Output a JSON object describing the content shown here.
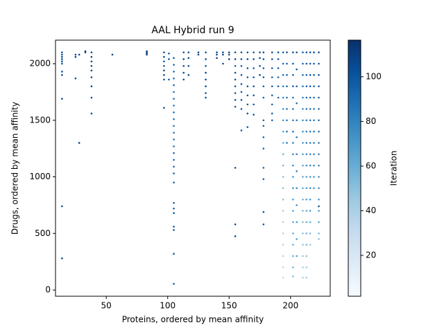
{
  "chart_data": {
    "type": "scatter",
    "title": "AAL Hybrid run 9",
    "x_label": "Proteins, ordered by mean affinity",
    "y_label": "Drugs, ordered by mean affinity",
    "colorbar_label": "Iteration",
    "colormap": "Blues",
    "xlim": [
      8.7,
      232.3
    ],
    "ylim": [
      -55,
      2208
    ],
    "clim": [
      1.7,
      116.4
    ],
    "xticks": [
      50,
      100,
      150,
      200
    ],
    "yticks": [
      0,
      500,
      1000,
      1500,
      2000
    ],
    "cticks": [
      20,
      40,
      60,
      80,
      100
    ],
    "points": [
      [
        14,
        2100,
        105
      ],
      [
        14,
        2080,
        105
      ],
      [
        14,
        2060,
        105
      ],
      [
        14,
        2040,
        105
      ],
      [
        14,
        2020,
        105
      ],
      [
        14,
        2000,
        105
      ],
      [
        14,
        1930,
        105
      ],
      [
        14,
        1900,
        105
      ],
      [
        14,
        1690,
        105
      ],
      [
        14,
        740,
        105
      ],
      [
        14,
        280,
        105
      ],
      [
        25,
        2080,
        108
      ],
      [
        25,
        2060,
        108
      ],
      [
        25,
        1870,
        108
      ],
      [
        28,
        2080,
        108
      ],
      [
        28,
        1300,
        108
      ],
      [
        33,
        2110,
        110
      ],
      [
        33,
        2100,
        110
      ],
      [
        38,
        2100,
        108
      ],
      [
        38,
        2060,
        108
      ],
      [
        38,
        2020,
        108
      ],
      [
        38,
        1980,
        108
      ],
      [
        38,
        1940,
        108
      ],
      [
        38,
        1880,
        108
      ],
      [
        38,
        1800,
        108
      ],
      [
        38,
        1700,
        108
      ],
      [
        38,
        1560,
        108
      ],
      [
        55,
        2080,
        110
      ],
      [
        83,
        2110,
        110
      ],
      [
        83,
        2100,
        110
      ],
      [
        83,
        2090,
        110
      ],
      [
        83,
        2080,
        110
      ],
      [
        97,
        2100,
        105
      ],
      [
        97,
        2060,
        105
      ],
      [
        97,
        2020,
        105
      ],
      [
        97,
        1980,
        105
      ],
      [
        97,
        1940,
        105
      ],
      [
        97,
        1900,
        105
      ],
      [
        97,
        1860,
        105
      ],
      [
        97,
        1610,
        105
      ],
      [
        101,
        2090,
        100
      ],
      [
        101,
        2040,
        100
      ],
      [
        101,
        1860,
        100
      ],
      [
        105,
        2050,
        95
      ],
      [
        105,
        1990,
        95
      ],
      [
        105,
        1930,
        92
      ],
      [
        105,
        1870,
        92
      ],
      [
        105,
        1810,
        90
      ],
      [
        105,
        1750,
        90
      ],
      [
        105,
        1690,
        88
      ],
      [
        105,
        1630,
        88
      ],
      [
        105,
        1570,
        90
      ],
      [
        105,
        1510,
        90
      ],
      [
        105,
        1450,
        88
      ],
      [
        105,
        1390,
        88
      ],
      [
        105,
        1330,
        90
      ],
      [
        105,
        1270,
        90
      ],
      [
        105,
        1210,
        92
      ],
      [
        105,
        1150,
        92
      ],
      [
        105,
        1090,
        95
      ],
      [
        105,
        1030,
        95
      ],
      [
        105,
        950,
        100
      ],
      [
        105,
        770,
        100
      ],
      [
        105,
        720,
        100
      ],
      [
        105,
        680,
        100
      ],
      [
        105,
        560,
        100
      ],
      [
        105,
        530,
        100
      ],
      [
        105,
        320,
        100
      ],
      [
        105,
        55,
        100
      ],
      [
        113,
        2100,
        105
      ],
      [
        113,
        2040,
        105
      ],
      [
        113,
        1980,
        105
      ],
      [
        113,
        1920,
        105
      ],
      [
        113,
        1860,
        105
      ],
      [
        117,
        2100,
        105
      ],
      [
        117,
        2050,
        105
      ],
      [
        117,
        1980,
        105
      ],
      [
        117,
        1900,
        105
      ],
      [
        125,
        2100,
        108
      ],
      [
        125,
        2080,
        108
      ],
      [
        131,
        2100,
        105
      ],
      [
        131,
        2040,
        105
      ],
      [
        131,
        1980,
        105
      ],
      [
        131,
        1920,
        105
      ],
      [
        131,
        1860,
        105
      ],
      [
        131,
        1800,
        105
      ],
      [
        131,
        1740,
        105
      ],
      [
        131,
        1700,
        105
      ],
      [
        140,
        2100,
        108
      ],
      [
        140,
        2080,
        108
      ],
      [
        140,
        2050,
        108
      ],
      [
        145,
        2100,
        108
      ],
      [
        145,
        2080,
        108
      ],
      [
        145,
        2000,
        108
      ],
      [
        150,
        2100,
        108
      ],
      [
        150,
        2080,
        108
      ],
      [
        150,
        2040,
        108
      ],
      [
        155,
        2100,
        105
      ],
      [
        155,
        2040,
        105
      ],
      [
        155,
        1980,
        100
      ],
      [
        155,
        1920,
        100
      ],
      [
        155,
        1860,
        100
      ],
      [
        155,
        1800,
        100
      ],
      [
        155,
        1740,
        100
      ],
      [
        155,
        1680,
        100
      ],
      [
        155,
        1620,
        100
      ],
      [
        155,
        1080,
        105
      ],
      [
        155,
        580,
        105
      ],
      [
        155,
        475,
        105
      ],
      [
        160,
        2100,
        105
      ],
      [
        160,
        2040,
        105
      ],
      [
        160,
        1980,
        100
      ],
      [
        160,
        1900,
        100
      ],
      [
        160,
        1820,
        100
      ],
      [
        160,
        1750,
        100
      ],
      [
        160,
        1680,
        100
      ],
      [
        160,
        1600,
        100
      ],
      [
        160,
        1410,
        100
      ],
      [
        165,
        2100,
        105
      ],
      [
        165,
        2040,
        105
      ],
      [
        165,
        1960,
        100
      ],
      [
        165,
        1880,
        100
      ],
      [
        165,
        1800,
        100
      ],
      [
        165,
        1720,
        100
      ],
      [
        165,
        1640,
        100
      ],
      [
        165,
        1560,
        100
      ],
      [
        165,
        1440,
        100
      ],
      [
        170,
        2100,
        105
      ],
      [
        170,
        2040,
        105
      ],
      [
        170,
        1960,
        100
      ],
      [
        170,
        1880,
        100
      ],
      [
        170,
        1800,
        100
      ],
      [
        170,
        1720,
        100
      ],
      [
        170,
        1640,
        100
      ],
      [
        170,
        1550,
        100
      ],
      [
        175,
        2100,
        105
      ],
      [
        175,
        2050,
        105
      ],
      [
        175,
        1980,
        105
      ],
      [
        175,
        1900,
        105
      ],
      [
        178,
        2100,
        105
      ],
      [
        178,
        2040,
        100
      ],
      [
        178,
        1960,
        100
      ],
      [
        178,
        1880,
        100
      ],
      [
        178,
        1800,
        95
      ],
      [
        178,
        1700,
        95
      ],
      [
        178,
        1500,
        95
      ],
      [
        178,
        1450,
        95
      ],
      [
        178,
        1350,
        95
      ],
      [
        178,
        1250,
        95
      ],
      [
        178,
        1080,
        95
      ],
      [
        178,
        980,
        95
      ],
      [
        178,
        690,
        100
      ],
      [
        178,
        580,
        100
      ],
      [
        185,
        2100,
        105
      ],
      [
        185,
        2040,
        100
      ],
      [
        185,
        1960,
        100
      ],
      [
        185,
        1880,
        95
      ],
      [
        185,
        1800,
        95
      ],
      [
        185,
        1720,
        95
      ],
      [
        185,
        1640,
        95
      ],
      [
        185,
        1560,
        95
      ],
      [
        185,
        1500,
        95
      ],
      [
        190,
        2100,
        105
      ],
      [
        190,
        2040,
        100
      ],
      [
        190,
        1960,
        100
      ],
      [
        190,
        1880,
        95
      ],
      [
        190,
        1800,
        95
      ],
      [
        190,
        1700,
        95
      ],
      [
        194,
        2100,
        100
      ],
      [
        194,
        2000,
        95
      ],
      [
        194,
        1900,
        90
      ],
      [
        194,
        1800,
        85
      ],
      [
        194,
        1700,
        80
      ],
      [
        194,
        1600,
        75
      ],
      [
        194,
        1500,
        70
      ],
      [
        194,
        1400,
        65
      ],
      [
        194,
        1300,
        60
      ],
      [
        194,
        1200,
        58
      ],
      [
        194,
        1100,
        55
      ],
      [
        194,
        1000,
        52
      ],
      [
        194,
        900,
        50
      ],
      [
        194,
        800,
        48
      ],
      [
        194,
        700,
        45
      ],
      [
        194,
        600,
        42
      ],
      [
        194,
        500,
        40
      ],
      [
        194,
        400,
        38
      ],
      [
        194,
        300,
        36
      ],
      [
        194,
        200,
        34
      ],
      [
        194,
        110,
        32
      ],
      [
        197,
        2100,
        105
      ],
      [
        197,
        2000,
        100
      ],
      [
        197,
        1900,
        95
      ],
      [
        197,
        1800,
        95
      ],
      [
        197,
        1700,
        90
      ],
      [
        197,
        1600,
        90
      ],
      [
        197,
        1500,
        88
      ],
      [
        197,
        1400,
        88
      ],
      [
        197,
        1300,
        85
      ],
      [
        202,
        2100,
        105
      ],
      [
        202,
        2000,
        100
      ],
      [
        202,
        1900,
        98
      ],
      [
        202,
        1800,
        95
      ],
      [
        202,
        1700,
        92
      ],
      [
        202,
        1600,
        90
      ],
      [
        202,
        1500,
        88
      ],
      [
        202,
        1400,
        85
      ],
      [
        202,
        1300,
        82
      ],
      [
        202,
        1200,
        80
      ],
      [
        202,
        1100,
        78
      ],
      [
        202,
        1000,
        75
      ],
      [
        202,
        900,
        72
      ],
      [
        202,
        800,
        70
      ],
      [
        202,
        700,
        68
      ],
      [
        202,
        600,
        65
      ],
      [
        202,
        500,
        62
      ],
      [
        202,
        400,
        60
      ],
      [
        202,
        300,
        58
      ],
      [
        202,
        200,
        55
      ],
      [
        202,
        120,
        52
      ],
      [
        205,
        2100,
        105
      ],
      [
        205,
        1950,
        100
      ],
      [
        205,
        1800,
        95
      ],
      [
        205,
        1650,
        90
      ],
      [
        205,
        1500,
        88
      ],
      [
        205,
        1350,
        85
      ],
      [
        205,
        1200,
        82
      ],
      [
        205,
        1050,
        80
      ],
      [
        205,
        900,
        78
      ],
      [
        205,
        750,
        75
      ],
      [
        205,
        600,
        72
      ],
      [
        205,
        450,
        70
      ],
      [
        205,
        300,
        68
      ],
      [
        210,
        2100,
        100
      ],
      [
        210,
        2000,
        95
      ],
      [
        210,
        1900,
        90
      ],
      [
        210,
        1800,
        85
      ],
      [
        210,
        1700,
        80
      ],
      [
        210,
        1600,
        78
      ],
      [
        210,
        1500,
        75
      ],
      [
        210,
        1400,
        72
      ],
      [
        210,
        1300,
        70
      ],
      [
        210,
        1200,
        68
      ],
      [
        210,
        1100,
        65
      ],
      [
        210,
        1000,
        62
      ],
      [
        210,
        900,
        60
      ],
      [
        210,
        800,
        58
      ],
      [
        210,
        700,
        55
      ],
      [
        210,
        600,
        52
      ],
      [
        210,
        500,
        50
      ],
      [
        210,
        400,
        48
      ],
      [
        210,
        300,
        45
      ],
      [
        210,
        200,
        42
      ],
      [
        210,
        110,
        40
      ],
      [
        213,
        2100,
        105
      ],
      [
        213,
        2000,
        100
      ],
      [
        213,
        1900,
        95
      ],
      [
        213,
        1800,
        92
      ],
      [
        213,
        1700,
        90
      ],
      [
        213,
        1600,
        88
      ],
      [
        213,
        1500,
        85
      ],
      [
        213,
        1400,
        82
      ],
      [
        213,
        1300,
        80
      ],
      [
        213,
        1200,
        78
      ],
      [
        213,
        1100,
        75
      ],
      [
        213,
        1000,
        72
      ],
      [
        213,
        900,
        70
      ],
      [
        213,
        800,
        68
      ],
      [
        213,
        700,
        65
      ],
      [
        213,
        600,
        62
      ],
      [
        213,
        500,
        60
      ],
      [
        213,
        400,
        55
      ],
      [
        213,
        300,
        50
      ],
      [
        213,
        200,
        45
      ],
      [
        213,
        110,
        42
      ],
      [
        216,
        2100,
        105
      ],
      [
        216,
        2000,
        100
      ],
      [
        216,
        1900,
        98
      ],
      [
        216,
        1800,
        95
      ],
      [
        216,
        1700,
        92
      ],
      [
        216,
        1600,
        90
      ],
      [
        216,
        1500,
        88
      ],
      [
        216,
        1400,
        85
      ],
      [
        216,
        1300,
        82
      ],
      [
        216,
        1200,
        80
      ],
      [
        216,
        1100,
        78
      ],
      [
        216,
        1000,
        75
      ],
      [
        216,
        900,
        72
      ],
      [
        216,
        800,
        70
      ],
      [
        216,
        700,
        68
      ],
      [
        216,
        600,
        62
      ],
      [
        216,
        500,
        55
      ],
      [
        216,
        400,
        45
      ],
      [
        219,
        2100,
        105
      ],
      [
        219,
        2000,
        100
      ],
      [
        219,
        1900,
        98
      ],
      [
        219,
        1800,
        95
      ],
      [
        219,
        1700,
        92
      ],
      [
        219,
        1600,
        90
      ],
      [
        219,
        1500,
        88
      ],
      [
        219,
        1400,
        85
      ],
      [
        219,
        1300,
        82
      ],
      [
        219,
        1200,
        80
      ],
      [
        219,
        1100,
        78
      ],
      [
        219,
        1000,
        75
      ],
      [
        219,
        900,
        72
      ],
      [
        223,
        2100,
        105
      ],
      [
        223,
        2000,
        100
      ],
      [
        223,
        1900,
        98
      ],
      [
        223,
        1800,
        95
      ],
      [
        223,
        1700,
        92
      ],
      [
        223,
        1600,
        90
      ],
      [
        223,
        1500,
        88
      ],
      [
        223,
        1400,
        85
      ],
      [
        223,
        1300,
        82
      ],
      [
        223,
        1200,
        80
      ],
      [
        223,
        1100,
        78
      ],
      [
        223,
        1000,
        75
      ],
      [
        223,
        900,
        72
      ],
      [
        223,
        800,
        70
      ],
      [
        223,
        740,
        105
      ],
      [
        223,
        700,
        68
      ],
      [
        223,
        600,
        62
      ],
      [
        223,
        500,
        55
      ],
      [
        223,
        450,
        50
      ]
    ]
  }
}
